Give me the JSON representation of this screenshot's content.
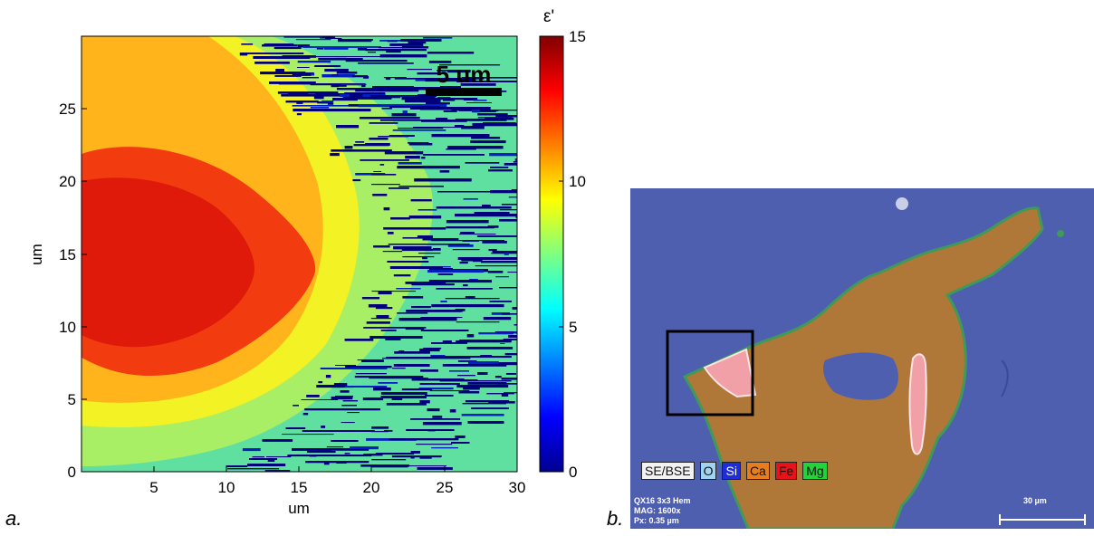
{
  "panel_a": {
    "label": "a.",
    "xlabel": "um",
    "ylabel": "um",
    "x_ticks": [
      "5",
      "10",
      "15",
      "20",
      "25",
      "30"
    ],
    "y_ticks": [
      "0",
      "5",
      "10",
      "15",
      "20",
      "25"
    ],
    "colorbar_title": "ε'",
    "colorbar_ticks": [
      "0",
      "5",
      "10",
      "15"
    ],
    "scalebar_label": "5 um"
  },
  "panel_b": {
    "label": "b.",
    "legend": [
      {
        "text": "SE/BSE",
        "bg": "#f2f2f2",
        "fg": "#111111"
      },
      {
        "text": "O",
        "bg": "#9fd4f2",
        "fg": "#111111"
      },
      {
        "text": "Si",
        "bg": "#1f2dd6",
        "fg": "#ffffff"
      },
      {
        "text": "Ca",
        "bg": "#e87d1e",
        "fg": "#111111"
      },
      {
        "text": "Fe",
        "bg": "#e8121a",
        "fg": "#111111"
      },
      {
        "text": "Mg",
        "bg": "#22d43a",
        "fg": "#111111"
      }
    ],
    "meta": [
      "QX16 3x3 Hem",
      "MAG: 1600x",
      "Px: 0.35 µm"
    ],
    "scalebar_label": "30 µm"
  },
  "chart_data": {
    "type": "heatmap",
    "title": "",
    "xlabel": "um",
    "ylabel": "um",
    "xlim": [
      0,
      30
    ],
    "ylim": [
      0,
      30
    ],
    "x_ticks": [
      5,
      10,
      15,
      20,
      25,
      30
    ],
    "y_ticks": [
      0,
      5,
      10,
      15,
      20,
      25
    ],
    "colorbar": {
      "label": "ε'",
      "range": [
        0,
        15
      ],
      "ticks": [
        0,
        5,
        10,
        15
      ],
      "colormap": "jet"
    },
    "regions": [
      {
        "description": "core",
        "value": 14,
        "center_um": [
          6,
          15
        ]
      },
      {
        "description": "inner ring",
        "value": 12.5
      },
      {
        "description": "yellow band",
        "value": 9.5
      },
      {
        "description": "outer band",
        "value": 8
      },
      {
        "description": "background",
        "value": 6
      },
      {
        "description": "noise streaks",
        "value": 0
      }
    ],
    "scalebar": "5 um"
  }
}
